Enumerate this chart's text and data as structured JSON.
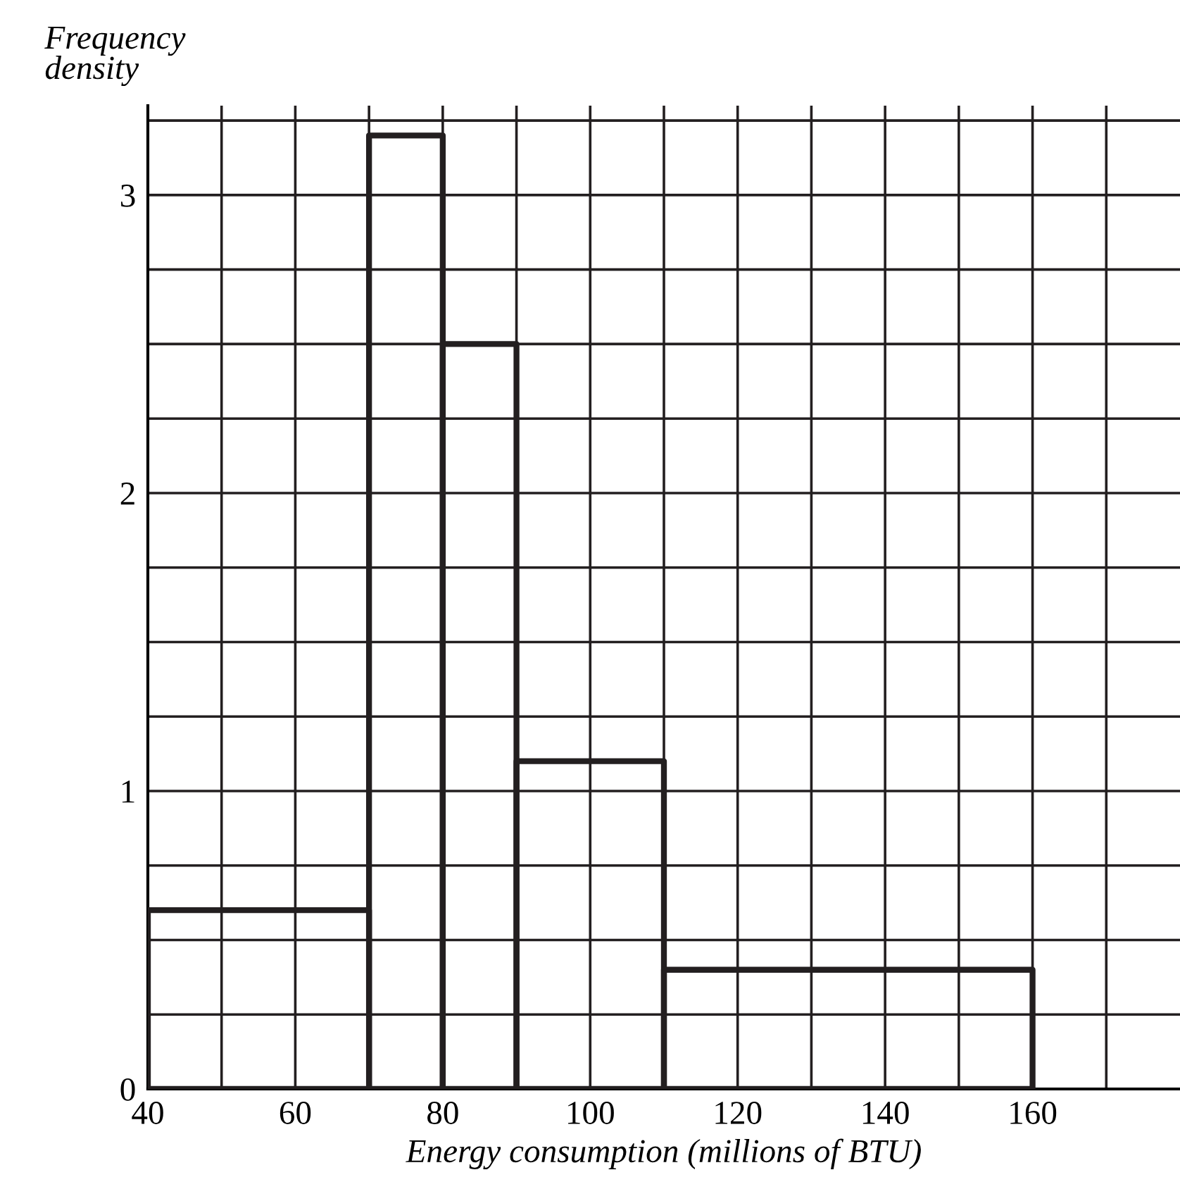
{
  "chart_data": {
    "type": "histogram",
    "xlabel": "Energy consumption (millions of BTU)",
    "ylabel": "Frequency\ndensity",
    "bins": [
      40,
      70,
      80,
      90,
      110,
      160
    ],
    "values": [
      0.6,
      3.2,
      2.5,
      1.1,
      0.4
    ],
    "color": "#231f20",
    "xlim": [
      40,
      180
    ],
    "xticks": [
      40,
      {
        "value": 50,
        "label": null
      },
      60,
      {
        "value": 70,
        "label": null
      },
      80,
      {
        "value": 90,
        "label": null
      },
      100,
      {
        "value": 110,
        "label": null
      },
      120,
      {
        "value": 130,
        "label": null
      },
      140,
      {
        "value": 150,
        "label": null
      },
      160,
      {
        "value": 170,
        "label": null
      }
    ],
    "ylim": [
      0,
      3.3
    ],
    "yticks": [
      0,
      {
        "value": 0.25,
        "label": null
      },
      {
        "value": 0.5,
        "label": null
      },
      {
        "value": 0.75,
        "label": null
      },
      1,
      {
        "value": 1.25,
        "label": null
      },
      {
        "value": 1.5,
        "label": null
      },
      {
        "value": 1.75,
        "label": null
      },
      2,
      {
        "value": 2.25,
        "label": null
      },
      {
        "value": 2.5,
        "label": null
      },
      {
        "value": 2.75,
        "label": null
      },
      3,
      {
        "value": 3.25,
        "label": null
      }
    ],
    "grid": true
  }
}
